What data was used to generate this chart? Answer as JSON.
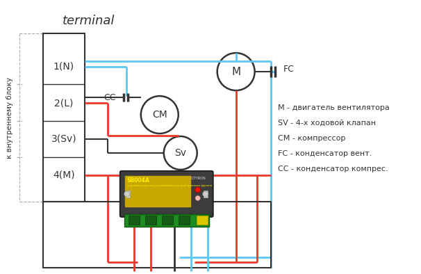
{
  "title": "terminal",
  "side_label": "к внутреннему блоку",
  "terminal_labels": [
    "1(N)",
    "2(L)",
    "3(Sv)",
    "4(M)"
  ],
  "legend_lines": [
    "М - двигатель вентилятора",
    "SV - 4-х ходовой клапан",
    "СМ - компрессор",
    "FC - конденсатор вент.",
    "СС - конденсатор компрес."
  ],
  "blue_color": "#5bc8f5",
  "red_color": "#e8392a",
  "black_color": "#333333",
  "bg_color": "#ffffff",
  "circle_M_label": "M",
  "circle_CM_label": "CM",
  "circle_Sv_label": "Sv",
  "fc_label": "FC",
  "cc_label": "СС"
}
